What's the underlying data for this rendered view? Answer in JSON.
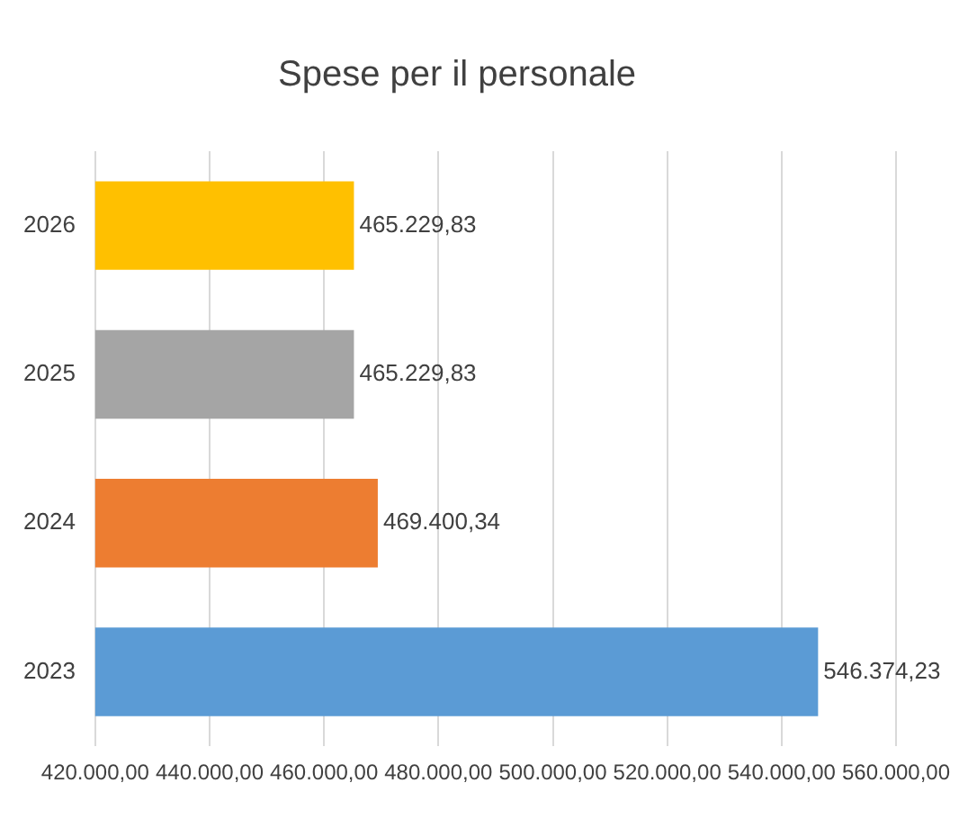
{
  "chart_data": {
    "type": "bar",
    "orientation": "horizontal",
    "title": "Spese per il personale",
    "categories": [
      "2026",
      "2025",
      "2024",
      "2023"
    ],
    "values": [
      465229.83,
      465229.83,
      469400.34,
      546374.23
    ],
    "colors": [
      "#ffc000",
      "#a5a5a5",
      "#ed7d31",
      "#5b9bd5"
    ],
    "value_labels": [
      "465.229,83",
      "465.229,83",
      "469.400,34",
      "546.374,23"
    ],
    "xlim": [
      420000,
      560000
    ],
    "xticks": [
      {
        "value": 420000,
        "label": "420.000,00"
      },
      {
        "value": 440000,
        "label": "440.000,00"
      },
      {
        "value": 460000,
        "label": "460.000,00"
      },
      {
        "value": 480000,
        "label": "480.000,00"
      },
      {
        "value": 500000,
        "label": "500.000,00"
      },
      {
        "value": 520000,
        "label": "520.000,00"
      },
      {
        "value": 540000,
        "label": "540.000,00"
      },
      {
        "value": 560000,
        "label": "560.000,00"
      }
    ],
    "grid": "x",
    "legend": false
  }
}
